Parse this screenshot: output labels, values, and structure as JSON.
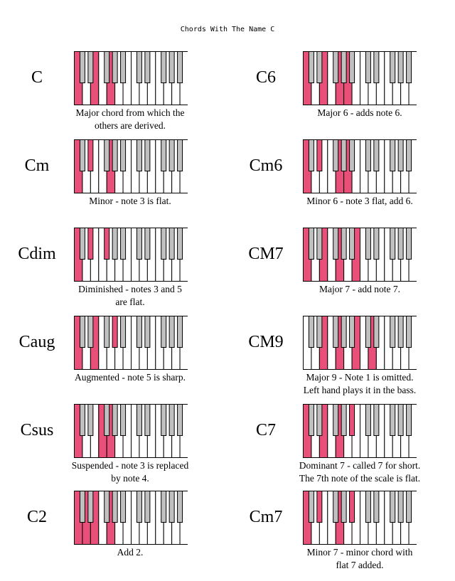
{
  "page": {
    "title": "Chords With The Name C"
  },
  "colors": {
    "highlight": "#e8507a",
    "black_key": "#c0c0c0",
    "white_key": "#ffffff",
    "outline": "#000000"
  },
  "chords": [
    {
      "name": "C",
      "caption": [
        "Major chord from which the",
        "others are derived."
      ],
      "keys": [
        0,
        4,
        7
      ]
    },
    {
      "name": "C6",
      "caption": [
        "Major 6 - adds note 6."
      ],
      "keys": [
        0,
        4,
        7,
        9
      ]
    },
    {
      "name": "Cm",
      "caption": [
        "Minor - note 3 is flat."
      ],
      "keys": [
        0,
        3,
        7
      ]
    },
    {
      "name": "Cm6",
      "caption": [
        "Minor 6 - note 3 flat, add 6."
      ],
      "keys": [
        0,
        3,
        7,
        9
      ]
    },
    {
      "name": "Cdim",
      "caption": [
        "Diminished - notes 3 and 5",
        "are flat."
      ],
      "keys": [
        0,
        3,
        6
      ]
    },
    {
      "name": "CM7",
      "caption": [
        "Major 7 - add note 7."
      ],
      "keys": [
        0,
        4,
        7,
        11
      ]
    },
    {
      "name": "Caug",
      "caption": [
        "Augmented - note 5 is sharp."
      ],
      "keys": [
        0,
        4,
        8
      ]
    },
    {
      "name": "CM9",
      "caption": [
        "Major 9 - Note 1 is omitted.",
        "Left hand plays it in the bass."
      ],
      "keys": [
        4,
        7,
        11,
        14
      ]
    },
    {
      "name": "Csus",
      "caption": [
        "Suspended - note 3 is replaced",
        "by note 4."
      ],
      "keys": [
        0,
        5,
        7
      ]
    },
    {
      "name": "C7",
      "caption": [
        "Dominant 7 - called 7 for short.",
        "The 7th note of the scale is flat."
      ],
      "keys": [
        0,
        4,
        7,
        10
      ]
    },
    {
      "name": "C2",
      "caption": [
        "Add 2."
      ],
      "keys": [
        0,
        2,
        4,
        7
      ]
    },
    {
      "name": "Cm7",
      "caption": [
        "Minor 7 - minor chord with",
        "flat 7 added."
      ],
      "keys": [
        0,
        3,
        7,
        10
      ]
    }
  ]
}
